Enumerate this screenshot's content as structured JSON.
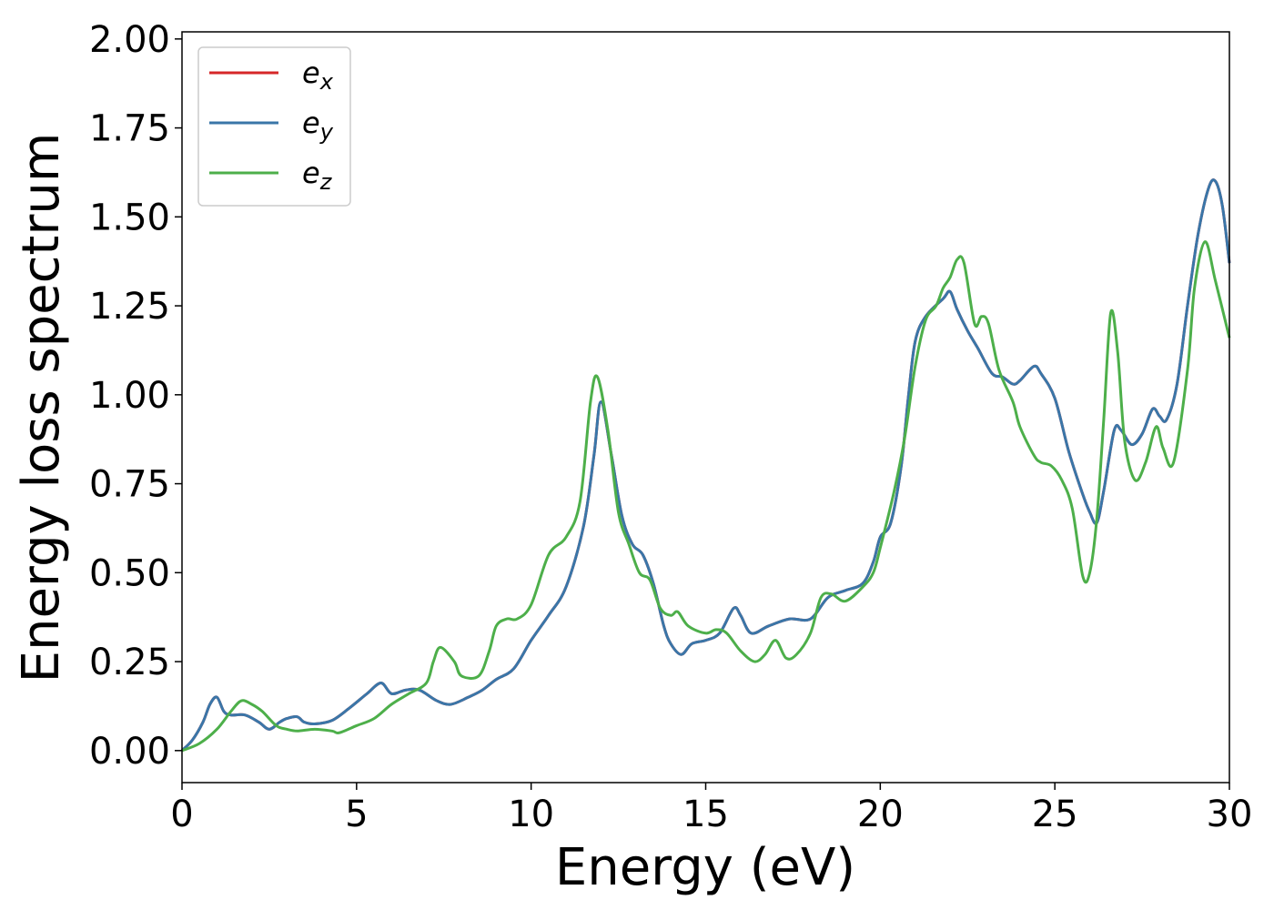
{
  "chart_data": {
    "type": "line",
    "title": "",
    "xlabel": "Energy (eV)",
    "ylabel": "Energy loss spectrum",
    "xlim": [
      0,
      30
    ],
    "ylim": [
      -0.09,
      2.02
    ],
    "xticks": [
      0,
      5,
      10,
      15,
      20,
      25,
      30
    ],
    "yticks": [
      0.0,
      0.25,
      0.5,
      0.75,
      1.0,
      1.25,
      1.5,
      1.75,
      2.0
    ],
    "xtick_labels": [
      "0",
      "5",
      "10",
      "15",
      "20",
      "25",
      "30"
    ],
    "ytick_labels": [
      "0.00",
      "0.25",
      "0.50",
      "0.75",
      "1.00",
      "1.25",
      "1.50",
      "1.75",
      "2.00"
    ],
    "grid": false,
    "legend": "top-left",
    "series": [
      {
        "name": "e",
        "subscript": "x",
        "color": "#d62728",
        "x": [
          0,
          0.3,
          0.6,
          0.8,
          1.0,
          1.2,
          1.4,
          1.8,
          2.2,
          2.5,
          2.8,
          3.0,
          3.3,
          3.5,
          3.8,
          4.3,
          4.8,
          5.3,
          5.7,
          6.0,
          6.4,
          6.8,
          7.3,
          7.7,
          8.2,
          8.6,
          9.0,
          9.5,
          10.0,
          10.5,
          11.0,
          11.5,
          11.8,
          12.0,
          12.3,
          12.6,
          12.9,
          13.2,
          13.5,
          13.8,
          14.0,
          14.3,
          14.6,
          15.0,
          15.4,
          15.8,
          16.0,
          16.3,
          16.8,
          17.4,
          18.0,
          18.5,
          19.0,
          19.5,
          19.8,
          20.0,
          20.3,
          20.6,
          20.8,
          21.0,
          21.3,
          21.8,
          22.0,
          22.2,
          22.5,
          22.8,
          23.2,
          23.5,
          23.8,
          24.0,
          24.4,
          24.6,
          25.0,
          25.4,
          25.8,
          26.0,
          26.2,
          26.4,
          26.7,
          26.9,
          27.2,
          27.5,
          27.8,
          28.0,
          28.2,
          28.5,
          28.8,
          29.1,
          29.4,
          29.6,
          29.8,
          30.0
        ],
        "y": [
          0.0,
          0.03,
          0.08,
          0.13,
          0.15,
          0.11,
          0.1,
          0.1,
          0.08,
          0.06,
          0.08,
          0.09,
          0.095,
          0.08,
          0.075,
          0.085,
          0.12,
          0.16,
          0.19,
          0.16,
          0.17,
          0.17,
          0.14,
          0.13,
          0.15,
          0.17,
          0.2,
          0.23,
          0.31,
          0.38,
          0.46,
          0.63,
          0.83,
          0.98,
          0.83,
          0.66,
          0.58,
          0.55,
          0.47,
          0.35,
          0.3,
          0.27,
          0.3,
          0.31,
          0.33,
          0.4,
          0.38,
          0.33,
          0.35,
          0.37,
          0.37,
          0.43,
          0.45,
          0.47,
          0.53,
          0.6,
          0.64,
          0.8,
          0.99,
          1.15,
          1.22,
          1.27,
          1.29,
          1.24,
          1.18,
          1.13,
          1.06,
          1.05,
          1.03,
          1.04,
          1.08,
          1.06,
          0.99,
          0.84,
          0.72,
          0.67,
          0.64,
          0.73,
          0.9,
          0.9,
          0.86,
          0.89,
          0.96,
          0.94,
          0.93,
          1.03,
          1.25,
          1.45,
          1.58,
          1.6,
          1.53,
          1.37
        ]
      },
      {
        "name": "e",
        "subscript": "y",
        "color": "#3a76a8",
        "x": [
          0,
          0.3,
          0.6,
          0.8,
          1.0,
          1.2,
          1.4,
          1.8,
          2.2,
          2.5,
          2.8,
          3.0,
          3.3,
          3.5,
          3.8,
          4.3,
          4.8,
          5.3,
          5.7,
          6.0,
          6.4,
          6.8,
          7.3,
          7.7,
          8.2,
          8.6,
          9.0,
          9.5,
          10.0,
          10.5,
          11.0,
          11.5,
          11.8,
          12.0,
          12.3,
          12.6,
          12.9,
          13.2,
          13.5,
          13.8,
          14.0,
          14.3,
          14.6,
          15.0,
          15.4,
          15.8,
          16.0,
          16.3,
          16.8,
          17.4,
          18.0,
          18.5,
          19.0,
          19.5,
          19.8,
          20.0,
          20.3,
          20.6,
          20.8,
          21.0,
          21.3,
          21.8,
          22.0,
          22.2,
          22.5,
          22.8,
          23.2,
          23.5,
          23.8,
          24.0,
          24.4,
          24.6,
          25.0,
          25.4,
          25.8,
          26.0,
          26.2,
          26.4,
          26.7,
          26.9,
          27.2,
          27.5,
          27.8,
          28.0,
          28.2,
          28.5,
          28.8,
          29.1,
          29.4,
          29.6,
          29.8,
          30.0
        ],
        "y": [
          0.0,
          0.03,
          0.08,
          0.13,
          0.15,
          0.11,
          0.1,
          0.1,
          0.08,
          0.06,
          0.08,
          0.09,
          0.095,
          0.08,
          0.075,
          0.085,
          0.12,
          0.16,
          0.19,
          0.16,
          0.17,
          0.17,
          0.14,
          0.13,
          0.15,
          0.17,
          0.2,
          0.23,
          0.31,
          0.38,
          0.46,
          0.63,
          0.83,
          0.98,
          0.83,
          0.66,
          0.58,
          0.55,
          0.47,
          0.35,
          0.3,
          0.27,
          0.3,
          0.31,
          0.33,
          0.4,
          0.38,
          0.33,
          0.35,
          0.37,
          0.37,
          0.43,
          0.45,
          0.47,
          0.53,
          0.6,
          0.64,
          0.8,
          0.99,
          1.15,
          1.22,
          1.27,
          1.29,
          1.24,
          1.18,
          1.13,
          1.06,
          1.05,
          1.03,
          1.04,
          1.08,
          1.06,
          0.99,
          0.84,
          0.72,
          0.67,
          0.64,
          0.73,
          0.9,
          0.9,
          0.86,
          0.89,
          0.96,
          0.94,
          0.93,
          1.03,
          1.25,
          1.45,
          1.58,
          1.6,
          1.53,
          1.37
        ]
      },
      {
        "name": "e",
        "subscript": "z",
        "color": "#4daf4a",
        "x": [
          0,
          0.5,
          1.0,
          1.4,
          1.7,
          2.0,
          2.3,
          2.7,
          3.0,
          3.3,
          3.8,
          4.3,
          4.5,
          5.0,
          5.5,
          6.0,
          6.5,
          7.0,
          7.2,
          7.4,
          7.8,
          8.0,
          8.5,
          8.8,
          9.0,
          9.3,
          9.6,
          10.0,
          10.5,
          11.0,
          11.4,
          11.7,
          11.9,
          12.2,
          12.5,
          12.8,
          13.1,
          13.4,
          13.7,
          14.0,
          14.2,
          14.5,
          15.0,
          15.3,
          15.6,
          16.0,
          16.4,
          16.7,
          17.0,
          17.3,
          17.6,
          18.0,
          18.3,
          18.6,
          19.0,
          19.5,
          19.8,
          20.0,
          20.4,
          20.7,
          21.0,
          21.3,
          21.6,
          21.8,
          22.0,
          22.2,
          22.4,
          22.7,
          22.9,
          23.1,
          23.4,
          23.8,
          24.0,
          24.4,
          24.6,
          24.9,
          25.2,
          25.5,
          25.8,
          26.0,
          26.2,
          26.4,
          26.6,
          26.8,
          27.0,
          27.3,
          27.6,
          27.9,
          28.1,
          28.4,
          28.8,
          29.0,
          29.3,
          29.6,
          30.0
        ],
        "y": [
          0.0,
          0.02,
          0.06,
          0.11,
          0.14,
          0.13,
          0.11,
          0.07,
          0.06,
          0.055,
          0.06,
          0.055,
          0.05,
          0.07,
          0.09,
          0.13,
          0.16,
          0.19,
          0.25,
          0.29,
          0.25,
          0.21,
          0.21,
          0.28,
          0.35,
          0.37,
          0.37,
          0.41,
          0.55,
          0.6,
          0.7,
          0.98,
          1.05,
          0.9,
          0.67,
          0.58,
          0.5,
          0.48,
          0.4,
          0.38,
          0.39,
          0.35,
          0.33,
          0.34,
          0.33,
          0.28,
          0.25,
          0.27,
          0.31,
          0.26,
          0.27,
          0.33,
          0.43,
          0.44,
          0.42,
          0.46,
          0.5,
          0.57,
          0.73,
          0.88,
          1.08,
          1.21,
          1.25,
          1.3,
          1.33,
          1.38,
          1.37,
          1.2,
          1.22,
          1.2,
          1.07,
          0.98,
          0.91,
          0.83,
          0.81,
          0.8,
          0.76,
          0.68,
          0.49,
          0.5,
          0.65,
          0.93,
          1.23,
          1.12,
          0.87,
          0.76,
          0.81,
          0.91,
          0.85,
          0.81,
          1.07,
          1.3,
          1.43,
          1.32,
          1.16
        ]
      }
    ]
  }
}
